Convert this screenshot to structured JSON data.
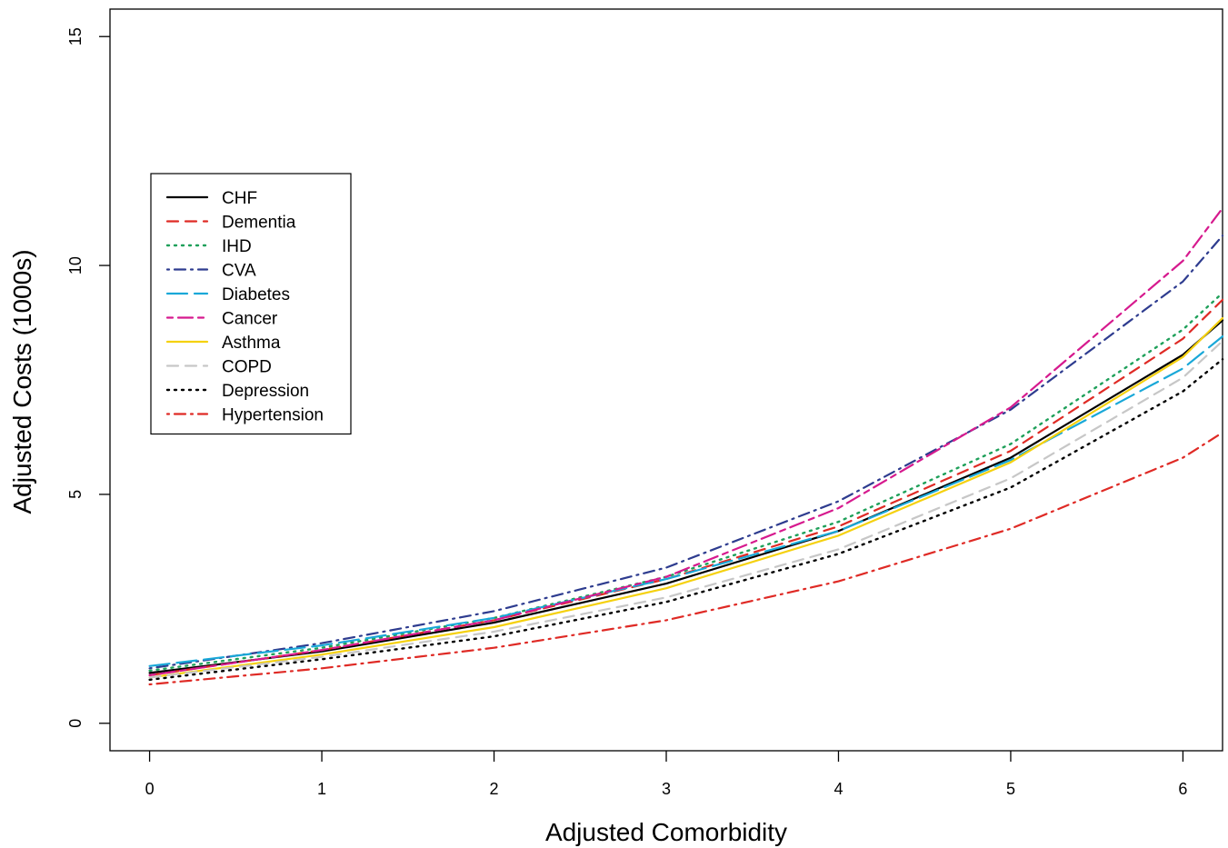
{
  "chart_data": {
    "type": "line",
    "title": "",
    "xlabel": "Adjusted Comorbidity",
    "ylabel": "Adjusted Costs (1000s)",
    "xlim": [
      -0.23,
      6.23
    ],
    "ylim": [
      -0.6,
      15.6
    ],
    "x_ticks": [
      0,
      1,
      2,
      3,
      4,
      5,
      6
    ],
    "y_ticks": [
      0,
      5,
      10,
      15
    ],
    "grid": false,
    "legend_position": "upper-left",
    "x": [
      0,
      1,
      2,
      3,
      4,
      5,
      6,
      6.23
    ],
    "series": [
      {
        "name": "CHF",
        "color": "#000000",
        "style": "solid",
        "values": [
          1.1,
          1.57,
          2.2,
          3.05,
          4.2,
          5.8,
          8.05,
          8.8
        ]
      },
      {
        "name": "Dementia",
        "color": "#DF2A25",
        "style": "dashed",
        "values": [
          1.05,
          1.6,
          2.25,
          3.15,
          4.3,
          5.95,
          8.4,
          9.25
        ]
      },
      {
        "name": "IHD",
        "color": "#1FA05A",
        "style": "dotted",
        "values": [
          1.15,
          1.65,
          2.3,
          3.2,
          4.4,
          6.1,
          8.6,
          9.4
        ]
      },
      {
        "name": "CVA",
        "color": "#2E3C8F",
        "style": "dashdot",
        "values": [
          1.2,
          1.75,
          2.45,
          3.4,
          4.85,
          6.85,
          9.65,
          10.65
        ]
      },
      {
        "name": "Diabetes",
        "color": "#19A8D8",
        "style": "longdash",
        "values": [
          1.25,
          1.7,
          2.3,
          3.15,
          4.2,
          5.75,
          7.75,
          8.45
        ]
      },
      {
        "name": "Cancer",
        "color": "#D61A8E",
        "style": "twodash",
        "values": [
          1.05,
          1.6,
          2.25,
          3.2,
          4.7,
          6.9,
          10.1,
          11.25
        ]
      },
      {
        "name": "Asthma",
        "color": "#F5D10F",
        "style": "solid",
        "values": [
          1.0,
          1.5,
          2.1,
          2.95,
          4.1,
          5.7,
          8.0,
          8.85
        ]
      },
      {
        "name": "COPD",
        "color": "#C7C7C7",
        "style": "dashed",
        "values": [
          1.0,
          1.45,
          2.0,
          2.75,
          3.8,
          5.35,
          7.55,
          8.35
        ]
      },
      {
        "name": "Depression",
        "color": "#000000",
        "style": "dotted",
        "values": [
          0.95,
          1.4,
          1.9,
          2.65,
          3.7,
          5.15,
          7.25,
          7.95
        ]
      },
      {
        "name": "Hypertension",
        "color": "#DF2A25",
        "style": "dashdot",
        "values": [
          0.85,
          1.2,
          1.65,
          2.25,
          3.1,
          4.25,
          5.8,
          6.35
        ]
      }
    ]
  }
}
